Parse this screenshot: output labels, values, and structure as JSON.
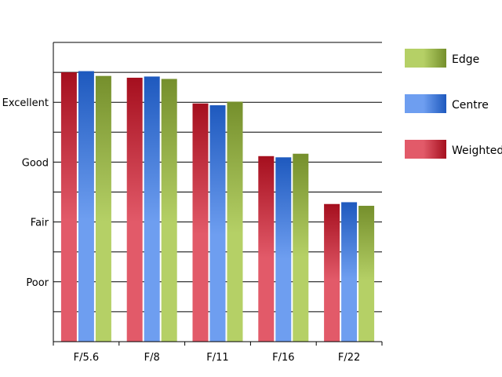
{
  "chart_data": {
    "type": "bar",
    "categories": [
      "F/5.6",
      "F/8",
      "F/11",
      "F/16",
      "F/22"
    ],
    "ylim": [
      0,
      5
    ],
    "yticks": [
      {
        "value": 1,
        "label": "Poor"
      },
      {
        "value": 2,
        "label": "Fair"
      },
      {
        "value": 3,
        "label": "Good"
      },
      {
        "value": 4,
        "label": "Excellent"
      }
    ],
    "series": [
      {
        "name": "Weighted",
        "values": [
          4.5,
          4.41,
          3.98,
          3.1,
          2.3
        ]
      },
      {
        "name": "Centre",
        "values": [
          4.52,
          4.43,
          3.95,
          3.08,
          2.33
        ]
      },
      {
        "name": "Edge",
        "values": [
          4.44,
          4.39,
          4.01,
          3.14,
          2.27
        ]
      }
    ],
    "legend_order": [
      "Edge",
      "Centre",
      "Weighted"
    ],
    "legend_position": "right",
    "grid": true,
    "colors": {
      "Weighted": {
        "dark": "#a50f1e",
        "light": "#e25a69"
      },
      "Centre": {
        "dark": "#1e59be",
        "light": "#6e9ef0"
      },
      "Edge": {
        "dark": "#758f2c",
        "light": "#b5d066"
      }
    }
  }
}
